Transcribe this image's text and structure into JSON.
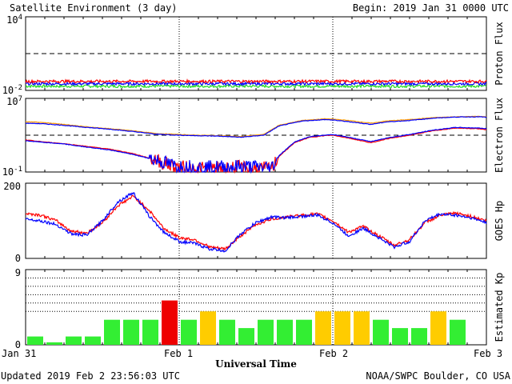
{
  "header": {
    "title": "Satellite Environment (3 day)",
    "begin": "Begin:  2019 Jan 31 0000 UTC"
  },
  "footer": {
    "updated": "Updated 2019 Feb  2 23:56:03 UTC",
    "credit": "NOAA/SWPC Boulder, CO USA"
  },
  "xaxis": {
    "label": "Universal Time",
    "ticks": [
      "Jan 31",
      "Feb 1",
      "Feb 2",
      "Feb 3"
    ]
  },
  "colors": {
    "red": "#ff0000",
    "blue": "#0000ff",
    "green": "#22dd22",
    "orange": "#ff9900",
    "kp_green": "#33ee33",
    "kp_yellow": "#ffcc00",
    "kp_red": "#ee0000"
  },
  "chart_data": [
    {
      "type": "line",
      "name": "proton-flux",
      "ylabel": "Proton Flux",
      "yscale": "log",
      "ylim": [
        0.01,
        10000
      ],
      "ytick_labels": {
        "top": "10",
        "top_exp": "4",
        "bottom": "10",
        "bottom_exp": "-2"
      },
      "x_unit": "days since 2019 Jan 31 00:00 UTC",
      "xlim": [
        0,
        3
      ],
      "threshold": 10,
      "series": [
        {
          "color": "red",
          "approx_level": 0.055
        },
        {
          "color": "blue",
          "approx_level": 0.035
        },
        {
          "color": "green",
          "approx_level": 0.022
        }
      ]
    },
    {
      "type": "line",
      "name": "electron-flux",
      "ylabel": "Electron Flux",
      "yscale": "log",
      "ylim": [
        0.1,
        10000000
      ],
      "ytick_labels": {
        "top": "10",
        "top_exp": "7",
        "bottom": "10",
        "bottom_exp": "-1"
      },
      "xlim": [
        0,
        3
      ],
      "threshold": 1000,
      "series": [
        {
          "color": "orange",
          "x": [
            0,
            0.1,
            0.25,
            0.4,
            0.55,
            0.7,
            0.85,
            1.0,
            1.1,
            1.25,
            1.4,
            1.55,
            1.65,
            1.8,
            1.95,
            2.0,
            2.1,
            2.25,
            2.35,
            2.5,
            2.65,
            2.8,
            2.95,
            3.0
          ],
          "y": [
            30000,
            25000,
            15000,
            8000,
            5000,
            3000,
            1500,
            1200,
            1000,
            900,
            700,
            1200,
            12000,
            40000,
            60000,
            55000,
            40000,
            20000,
            35000,
            50000,
            80000,
            100000,
            110000,
            100000
          ]
        },
        {
          "color": "blue",
          "x": [
            0,
            0.1,
            0.25,
            0.4,
            0.55,
            0.7,
            0.85,
            1.0,
            1.1,
            1.25,
            1.4,
            1.55,
            1.65,
            1.8,
            1.95,
            2.0,
            2.1,
            2.25,
            2.35,
            2.5,
            2.65,
            2.8,
            2.95,
            3.0
          ],
          "y": [
            20000,
            18000,
            12000,
            7000,
            4500,
            2500,
            1300,
            1000,
            900,
            800,
            600,
            1000,
            10000,
            35000,
            50000,
            45000,
            30000,
            15000,
            28000,
            40000,
            70000,
            95000,
            100000,
            90000
          ]
        },
        {
          "color": "red",
          "x": [
            0,
            0.1,
            0.25,
            0.4,
            0.55,
            0.7,
            0.85,
            0.95,
            1.0,
            1.2,
            1.4,
            1.6,
            1.65,
            1.75,
            1.85,
            1.95,
            2.0,
            2.1,
            2.25,
            2.35,
            2.5,
            2.65,
            2.8,
            2.95,
            3.0
          ],
          "y": [
            300,
            200,
            120,
            60,
            30,
            10,
            2,
            0.5,
            0.3,
            0.2,
            0.3,
            0.2,
            5,
            150,
            600,
            900,
            1000,
            500,
            150,
            400,
            1000,
            3000,
            6000,
            5000,
            4000
          ]
        },
        {
          "color": "blue",
          "x": [
            0,
            0.1,
            0.25,
            0.4,
            0.55,
            0.7,
            0.85,
            0.95,
            1.0,
            1.2,
            1.4,
            1.6,
            1.65,
            1.75,
            1.85,
            1.95,
            2.0,
            2.1,
            2.25,
            2.35,
            2.5,
            2.65,
            2.8,
            2.95,
            3.0
          ],
          "y": [
            250,
            180,
            110,
            50,
            25,
            8,
            2,
            0.6,
            0.4,
            0.3,
            0.4,
            0.3,
            6,
            180,
            700,
            1000,
            1200,
            600,
            200,
            500,
            1200,
            3500,
            7000,
            6000,
            5000
          ]
        }
      ]
    },
    {
      "type": "line",
      "name": "goes-hp",
      "ylabel": "GOES Hp",
      "ylim": [
        0,
        200
      ],
      "ytick_labels": [
        "200",
        "0"
      ],
      "xlim": [
        0,
        3
      ],
      "series": [
        {
          "color": "red",
          "x": [
            0,
            0.1,
            0.2,
            0.3,
            0.4,
            0.5,
            0.6,
            0.7,
            0.8,
            0.9,
            1.0,
            1.1,
            1.2,
            1.3,
            1.4,
            1.5,
            1.6,
            1.7,
            1.8,
            1.9,
            2.0,
            2.1,
            2.2,
            2.3,
            2.4,
            2.5,
            2.6,
            2.7,
            2.8,
            2.9,
            3.0
          ],
          "y": [
            120,
            115,
            100,
            72,
            68,
            95,
            140,
            165,
            130,
            80,
            55,
            50,
            30,
            25,
            60,
            90,
            105,
            110,
            115,
            118,
            100,
            70,
            85,
            60,
            35,
            50,
            95,
            115,
            120,
            112,
            100
          ]
        },
        {
          "color": "blue",
          "x": [
            0,
            0.1,
            0.2,
            0.3,
            0.4,
            0.5,
            0.6,
            0.7,
            0.8,
            0.9,
            1.0,
            1.1,
            1.2,
            1.3,
            1.4,
            1.5,
            1.6,
            1.7,
            1.8,
            1.9,
            2.0,
            2.1,
            2.2,
            2.3,
            2.4,
            2.5,
            2.6,
            2.7,
            2.8,
            2.9,
            3.0
          ],
          "y": [
            105,
            100,
            90,
            65,
            62,
            100,
            150,
            175,
            115,
            70,
            45,
            40,
            25,
            20,
            65,
            95,
            110,
            108,
            112,
            115,
            95,
            60,
            80,
            55,
            30,
            45,
            100,
            118,
            115,
            108,
            95
          ]
        }
      ]
    },
    {
      "type": "bar",
      "name": "estimated-kp",
      "ylabel": "Estimated Kp",
      "ylim": [
        0,
        9
      ],
      "ytick_labels": [
        "9",
        "0"
      ],
      "guides": [
        4,
        5,
        6,
        7,
        8
      ],
      "values": [
        1,
        0.3,
        1,
        1,
        3,
        3,
        3,
        5.3,
        3,
        4,
        3,
        2,
        3,
        3,
        3,
        4,
        4,
        4,
        3,
        2,
        2,
        4,
        3,
        0
      ],
      "bar_colors": [
        "green",
        "green",
        "green",
        "green",
        "green",
        "green",
        "green",
        "red",
        "green",
        "yellow",
        "green",
        "green",
        "green",
        "green",
        "green",
        "yellow",
        "yellow",
        "yellow",
        "green",
        "green",
        "green",
        "yellow",
        "green",
        "green"
      ]
    }
  ]
}
